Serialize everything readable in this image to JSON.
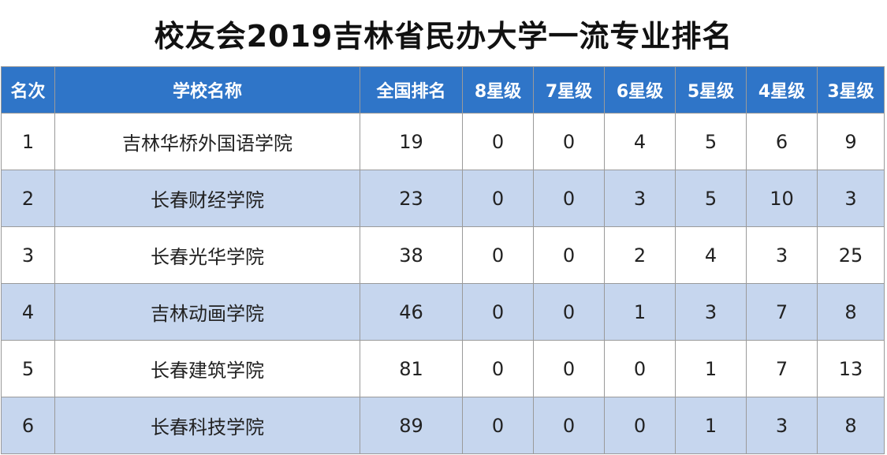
{
  "title": "校友会2019吉林省民办大学一流专业排名",
  "headers": [
    "名次",
    "学校名称",
    "全国排名",
    "8星级",
    "7星级",
    "6星级",
    "5星级",
    "4星级",
    "3星级"
  ],
  "rows": [
    [
      "1",
      "吉林华桥外国语学院",
      "19",
      "0",
      "0",
      "4",
      "5",
      "6",
      "9"
    ],
    [
      "2",
      "长春财经学院",
      "23",
      "0",
      "0",
      "3",
      "5",
      "10",
      "3"
    ],
    [
      "3",
      "长春光华学院",
      "38",
      "0",
      "0",
      "2",
      "4",
      "3",
      "25"
    ],
    [
      "4",
      "吉林动画学院",
      "46",
      "0",
      "0",
      "1",
      "3",
      "7",
      "8"
    ],
    [
      "5",
      "长春建筑学院",
      "81",
      "0",
      "0",
      "0",
      "1",
      "7",
      "13"
    ],
    [
      "6",
      "长春科技学院",
      "89",
      "0",
      "0",
      "0",
      "1",
      "3",
      "8"
    ]
  ],
  "colors": {
    "header_bg": "#2f75c8",
    "stripe_bg": "#c6d6ee",
    "border": "#9a9a9a"
  }
}
